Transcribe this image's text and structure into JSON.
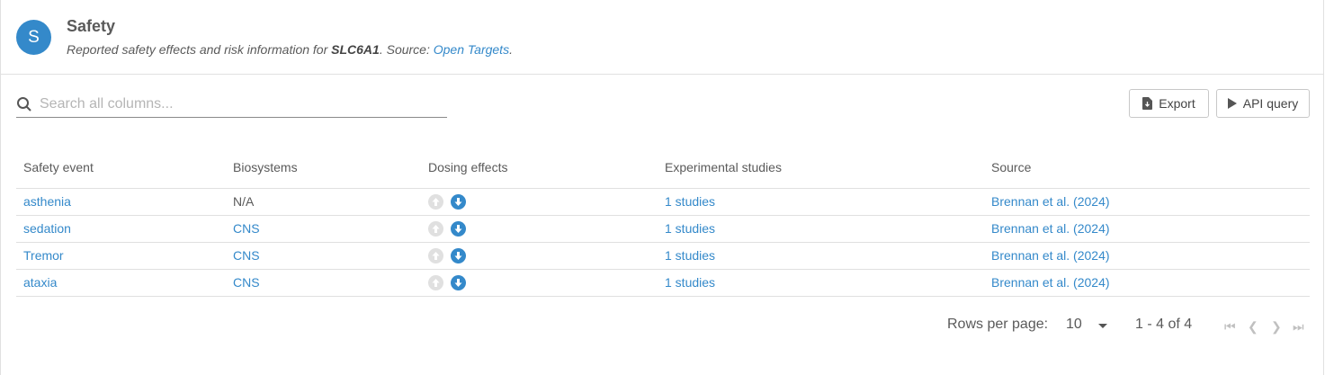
{
  "header": {
    "avatar_letter": "S",
    "title": "Safety",
    "subtitle_prefix": "Reported safety effects and risk information for ",
    "target": "SLC6A1",
    "subtitle_mid": ". Source: ",
    "source_link": "Open Targets",
    "subtitle_end": "."
  },
  "search": {
    "placeholder": "Search all columns...",
    "value": ""
  },
  "toolbar": {
    "export_label": "Export",
    "api_label": "API query"
  },
  "table": {
    "columns": [
      "Safety event",
      "Biosystems",
      "Dosing effects",
      "Experimental studies",
      "Source"
    ],
    "rows": [
      {
        "event": "asthenia",
        "biosystems": "N/A",
        "increase": false,
        "decrease": true,
        "studies": "1 studies",
        "source": "Brennan et al. (2024)"
      },
      {
        "event": "sedation",
        "biosystems": "CNS",
        "increase": false,
        "decrease": true,
        "studies": "1 studies",
        "source": "Brennan et al. (2024)"
      },
      {
        "event": "Tremor",
        "biosystems": "CNS",
        "increase": false,
        "decrease": true,
        "studies": "1 studies",
        "source": "Brennan et al. (2024)"
      },
      {
        "event": "ataxia",
        "biosystems": "CNS",
        "increase": false,
        "decrease": true,
        "studies": "1 studies",
        "source": "Brennan et al. (2024)"
      }
    ]
  },
  "pagination": {
    "rows_per_page_label": "Rows per page:",
    "rows_per_page": "10",
    "range": "1 - 4 of 4"
  },
  "colors": {
    "accent": "#3489ca",
    "inactive": "#e0e0e0"
  }
}
